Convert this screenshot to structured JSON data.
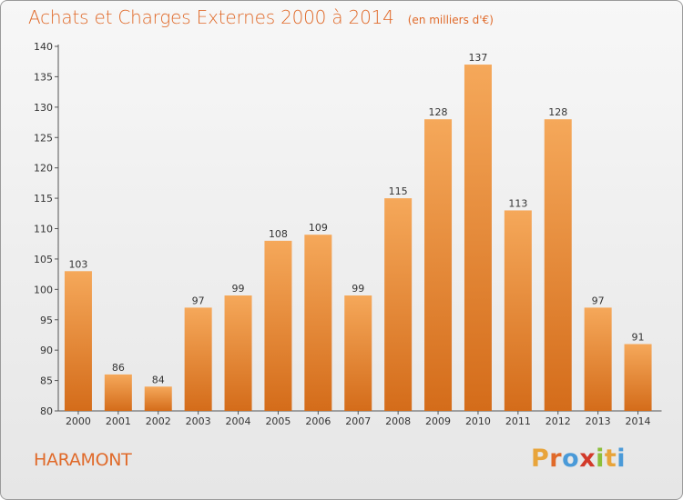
{
  "title": "Achats et Charges Externes 2000 à 2014",
  "unit_note": "(en milliers d'€)",
  "town": "HARAMONT",
  "logo": {
    "letters": [
      "P",
      "r",
      "o",
      "x",
      "i",
      "t",
      "i"
    ],
    "colors": [
      "#e8a43a",
      "#e06a2a",
      "#4a9ad8",
      "#d23a2a",
      "#8cbf3a",
      "#e8a43a",
      "#4a9ad8"
    ]
  },
  "colors": {
    "bar_top": "#f5a85a",
    "bar_bottom": "#d46c1a",
    "title": "#e06a2a"
  },
  "chart_data": {
    "type": "bar",
    "title": "Achats et Charges Externes 2000 à 2014",
    "subtitle": "(en milliers d'€)",
    "categories": [
      "2000",
      "2001",
      "2002",
      "2003",
      "2004",
      "2005",
      "2006",
      "2007",
      "2008",
      "2009",
      "2010",
      "2011",
      "2012",
      "2013",
      "2014"
    ],
    "values": [
      103,
      86,
      84,
      97,
      99,
      108,
      109,
      99,
      115,
      128,
      137,
      113,
      128,
      97,
      91
    ],
    "ylim": [
      80,
      140
    ],
    "yticks": [
      80,
      85,
      90,
      95,
      100,
      105,
      110,
      115,
      120,
      125,
      130,
      135,
      140
    ],
    "grid": false,
    "data_labels": true
  }
}
